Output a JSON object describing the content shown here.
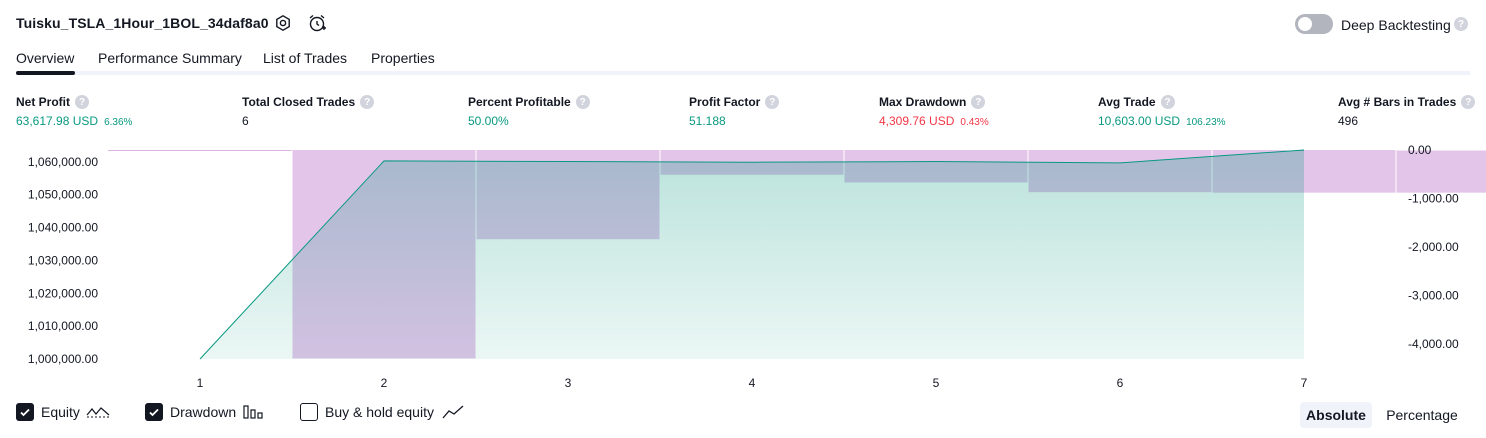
{
  "header": {
    "strategy_title": "Tuisku_TSLA_1Hour_1BOL_34daf8a0",
    "settings_icon": "gear-icon",
    "alert_icon": "alarm-clock-plus-icon",
    "deep_backtesting_label": "Deep Backtesting",
    "deep_backtesting_enabled": false,
    "help_glyph": "?"
  },
  "tabs": [
    {
      "label": "Overview",
      "active": true
    },
    {
      "label": "Performance Summary",
      "active": false
    },
    {
      "label": "List of Trades",
      "active": false
    },
    {
      "label": "Properties",
      "active": false
    }
  ],
  "metrics": [
    {
      "label": "Net Profit",
      "value": "63,617.98 USD",
      "pct": "6.36%",
      "color": "#089981"
    },
    {
      "label": "Total Closed Trades",
      "value": "6",
      "pct": "",
      "color": "#131722"
    },
    {
      "label": "Percent Profitable",
      "value": "50.00%",
      "pct": "",
      "color": "#089981"
    },
    {
      "label": "Profit Factor",
      "value": "51.188",
      "pct": "",
      "color": "#089981"
    },
    {
      "label": "Max Drawdown",
      "value": "4,309.76 USD",
      "pct": "0.43%",
      "color": "#f23645"
    },
    {
      "label": "Avg Trade",
      "value": "10,603.00 USD",
      "pct": "106.23%",
      "color": "#089981"
    },
    {
      "label": "Avg # Bars in Trades",
      "value": "496",
      "pct": "",
      "color": "#131722"
    }
  ],
  "chart_data": {
    "type": "area",
    "x": [
      1,
      2,
      3,
      4,
      5,
      6,
      7
    ],
    "equity": [
      1000000,
      1060300,
      1060100,
      1059900,
      1060100,
      1059700,
      1063618
    ],
    "drawdown": [
      -4309.76,
      -1850,
      -520,
      -680,
      -880,
      -890,
      -890
    ],
    "left_axis": {
      "ticks": [
        "1,060,000.00",
        "1,050,000.00",
        "1,040,000.00",
        "1,030,000.00",
        "1,020,000.00",
        "1,010,000.00",
        "1,000,000.00"
      ],
      "range": [
        1000000,
        1063618
      ]
    },
    "right_axis": {
      "ticks": [
        "0.00",
        "-1,000.00",
        "-2,000.00",
        "-3,000.00",
        "-4,000.00"
      ],
      "range": [
        -4309.76,
        0
      ]
    },
    "x_ticks": [
      "1",
      "2",
      "3",
      "4",
      "5",
      "6",
      "7"
    ],
    "colors": {
      "equity_line": "#089981",
      "equity_fill": "#089981",
      "drawdown_fill": "#9c27b0"
    }
  },
  "legend": [
    {
      "label": "Equity",
      "checked": true,
      "icon": "equity-line-icon"
    },
    {
      "label": "Drawdown",
      "checked": true,
      "icon": "drawdown-bars-icon"
    },
    {
      "label": "Buy & hold equity",
      "checked": false,
      "icon": "buy-hold-line-icon"
    }
  ],
  "scale_toggle": {
    "absolute_label": "Absolute",
    "percentage_label": "Percentage",
    "active": "Absolute"
  }
}
